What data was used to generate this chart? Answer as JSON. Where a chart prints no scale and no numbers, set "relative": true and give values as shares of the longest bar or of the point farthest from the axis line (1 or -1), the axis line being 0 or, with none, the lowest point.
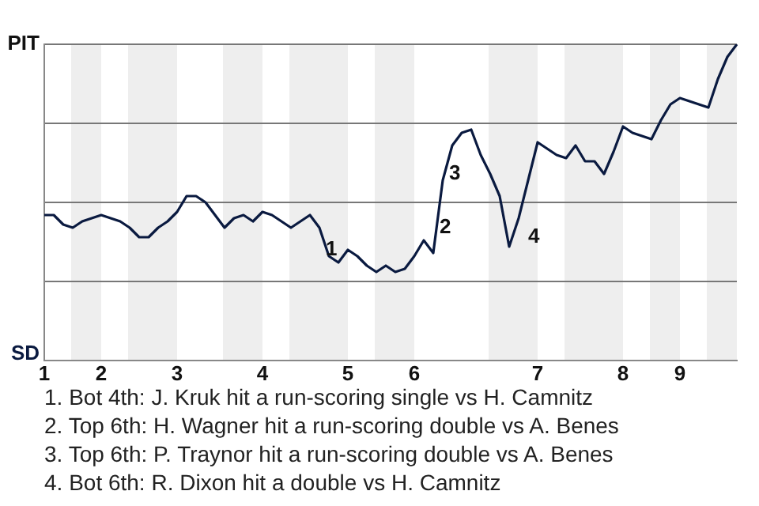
{
  "chart_data": {
    "type": "line",
    "relative": true,
    "categories": [
      "1",
      null,
      null,
      null,
      null,
      null,
      "2",
      null,
      null,
      null,
      null,
      null,
      null,
      null,
      "3",
      null,
      null,
      null,
      null,
      null,
      null,
      null,
      null,
      "4",
      null,
      null,
      null,
      null,
      null,
      null,
      null,
      null,
      "5",
      null,
      null,
      null,
      null,
      null,
      null,
      "6",
      null,
      null,
      null,
      null,
      null,
      null,
      null,
      null,
      null,
      null,
      null,
      null,
      "7",
      null,
      null,
      null,
      null,
      null,
      null,
      null,
      null,
      "8",
      null,
      null,
      null,
      null,
      null,
      "9",
      null,
      null,
      null,
      null,
      null,
      null
    ],
    "series": [
      {
        "color": "#0a1a40",
        "values": [
          0.46,
          0.46,
          0.43,
          0.42,
          0.44,
          0.45,
          0.46,
          0.45,
          0.44,
          0.42,
          0.39,
          0.39,
          0.42,
          0.44,
          0.47,
          0.52,
          0.52,
          0.5,
          0.46,
          0.42,
          0.45,
          0.46,
          0.44,
          0.47,
          0.46,
          0.44,
          0.42,
          0.44,
          0.46,
          0.42,
          0.33,
          0.31,
          0.35,
          0.33,
          0.3,
          0.28,
          0.3,
          0.28,
          0.29,
          0.33,
          0.38,
          0.34,
          0.57,
          0.68,
          0.72,
          0.73,
          0.65,
          0.59,
          0.52,
          0.36,
          0.45,
          0.57,
          0.69,
          0.67,
          0.65,
          0.64,
          0.68,
          0.63,
          0.63,
          0.59,
          0.66,
          0.74,
          0.72,
          0.71,
          0.7,
          0.76,
          0.81,
          0.83,
          0.82,
          0.81,
          0.8,
          0.89,
          0.96,
          1
        ]
      }
    ],
    "grid": "y",
    "marker": "none",
    "line_style": "solid",
    "annotations": [
      "PIT",
      "SD",
      "1",
      "2",
      "3",
      "4",
      "1. Bot 4th: J. Kruk hit a run-scoring single vs H. Camnitz",
      "2. Top 6th: H. Wagner hit a run-scoring double vs A. Benes",
      "3. Top 6th: P. Traynor hit a run-scoring double vs A. Benes",
      "4. Bot 6th: R. Dixon hit a double vs H. Camnitz"
    ]
  }
}
